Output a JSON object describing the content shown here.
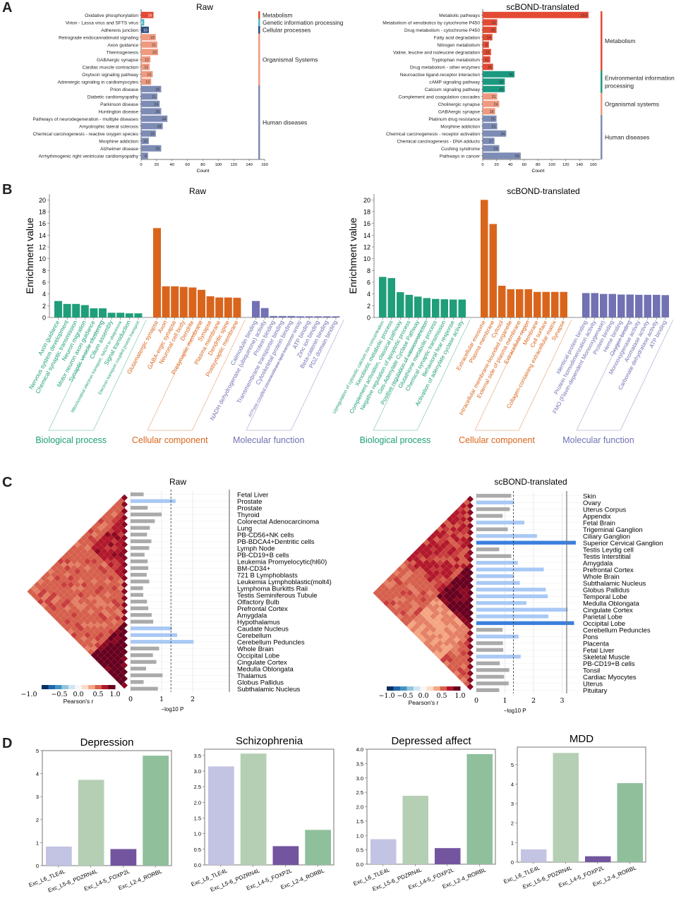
{
  "panels": {
    "a": "A",
    "b": "B",
    "c": "C",
    "d": "D"
  },
  "chart_data": [
    {
      "id": "A-raw",
      "type": "bar",
      "orientation": "horizontal",
      "title": "Raw",
      "xlabel": "Count",
      "xlim": [
        0,
        160
      ],
      "xticks": [
        0,
        20,
        40,
        60,
        80,
        100,
        120,
        140,
        160
      ],
      "categories": [
        "Oxidative phosphorylation",
        "Virion - Lassa virus and SFTS virus",
        "Adherens junction",
        "Retrograde endocannabinoid signaling",
        "Axon guidance",
        "Thermogenesis",
        "GABAergic synapse",
        "Cardiac muscle contraction",
        "Oxytocin signaling pathway",
        "Adrenergic signaling in cardiomyocytes",
        "Prion disease",
        "Diabetic cardiomyopathy",
        "Parkinson disease",
        "Huntington disease",
        "Pathways of neurodegeneration - multiple diseases",
        "Amyotrophic lateral sclerosis",
        "Chemical carcinogenesis - reactive oxygen species",
        "Morphine addiction",
        "Alzheimer disease",
        "Arrhythmogenic right ventricular cardiomyopathy"
      ],
      "values": [
        16,
        4,
        10,
        19,
        21,
        22,
        12,
        11,
        15,
        13,
        26,
        21,
        24,
        26,
        34,
        28,
        19,
        10,
        26,
        9
      ],
      "group_of": [
        0,
        1,
        2,
        3,
        3,
        3,
        3,
        3,
        3,
        3,
        4,
        4,
        4,
        4,
        4,
        4,
        4,
        4,
        4,
        4
      ],
      "groups": [
        {
          "name": "Metabolism",
          "color": "#e34a33",
          "label_color": "#ffffff"
        },
        {
          "name": "Genetic information processing",
          "color": "#4fb6c6",
          "label_color": "#ffffff"
        },
        {
          "name": "Cellular processes",
          "color": "#2b4a7e",
          "label_color": "#ffffff"
        },
        {
          "name": "Organismal Systems",
          "color": "#ef9a80",
          "label_color": "#333333"
        },
        {
          "name": "Human diseases",
          "color": "#7d8cb5",
          "label_color": "#333333"
        }
      ]
    },
    {
      "id": "A-scbond",
      "type": "bar",
      "orientation": "horizontal",
      "title": "scBOND-translated",
      "xlabel": "Count",
      "xlim": [
        0,
        170
      ],
      "xticks": [
        0,
        20,
        40,
        60,
        80,
        100,
        120,
        140,
        160
      ],
      "categories": [
        "Metabolic pathways",
        "Metabolism of xenobiotics by cytochrome P450",
        "Drug metabolism - cytochrome P450",
        "Fatty acid degradation",
        "Nitrogen metabolism",
        "Valine, leucine and isoleucine degradation",
        "Tryptophan metabolism",
        "Drug metabolism - other enzymes",
        "Neuroactive ligand-receptor interaction",
        "cAMP signaling pathway",
        "Calcium signaling pathway",
        "Complement and coagulation cascades",
        "Cholinergic synapse",
        "GABAergic synapse",
        "Platinum drug resistance",
        "Morphine addiction",
        "Chemical carcinogenesis - receptor activation",
        "Chemical carcinogenesis - DNA adducts",
        "Cushing syndrome",
        "Pathways in cancer"
      ],
      "values": [
        153,
        21,
        20,
        14,
        9,
        12,
        11,
        15,
        46,
        32,
        32,
        21,
        24,
        18,
        20,
        21,
        34,
        17,
        24,
        55
      ],
      "group_of": [
        0,
        0,
        0,
        0,
        0,
        0,
        0,
        0,
        1,
        1,
        1,
        2,
        2,
        2,
        3,
        3,
        3,
        3,
        3,
        3
      ],
      "groups": [
        {
          "name": "Metabolism",
          "color": "#e34a33",
          "label_color": "#333333"
        },
        {
          "name": "Environmental information processing",
          "color": "#1a9980",
          "label_color": "#333333"
        },
        {
          "name": "Organismal systems",
          "color": "#ef9a80",
          "label_color": "#333333"
        },
        {
          "name": "Human diseases",
          "color": "#7d8cb5",
          "label_color": "#333333"
        }
      ]
    },
    {
      "id": "B-raw",
      "type": "bar",
      "title": "Raw",
      "ylabel": "Enrichment value",
      "ylim": [
        0,
        21
      ],
      "yticks": [
        0,
        2,
        4,
        6,
        8,
        10,
        12,
        14,
        16,
        18,
        20
      ],
      "groups": [
        {
          "name": "Biological process",
          "color": "#1f9e79",
          "categories": [
            "Axon guidance",
            "Nervous system development",
            "Chemical synaptic transmission",
            "Neuron migration",
            "Motor neuron axon guidance",
            "Synaptic vesicle clustering",
            "Cilium assembly",
            "Mitochondrial electron transport, NADH to ubiquinone",
            "Signal transduction",
            "Electron transport coupled proton transport"
          ],
          "values": [
            2.8,
            2.3,
            2.3,
            2.1,
            1.55,
            1.55,
            0.8,
            0.8,
            0.7,
            0.7
          ]
        },
        {
          "name": "Cellular component",
          "color": "#d9651c",
          "categories": [
            "Glutamatergic synapse",
            "Axon",
            "GABA-ergic synapse",
            "Neuronal cell body",
            "Dendrite",
            "Presynaptic membrane",
            "Synapse",
            "Plasma membrane",
            "Dendritic spine",
            "Postsynaptic membrane"
          ],
          "values": [
            15.2,
            5.3,
            5.3,
            5.2,
            5.1,
            4.7,
            3.6,
            3.4,
            3.4,
            3.35
          ]
        },
        {
          "name": "Molecular function",
          "color": "#7271b3",
          "categories": [
            "Calmodulin binding",
            "NADH dehydrogenase (ubiquinone) activity",
            "Protein binding",
            "Transmembrane transporter binding",
            "Cytoskeletal protein binding",
            "ATPase-coupled intramembrane lipid transporter activity",
            "ATP binding",
            "Zinc ion binding",
            "Beta-catenin binding",
            "PDZ domain binding"
          ],
          "values": [
            2.8,
            1.6,
            0.25,
            0.25,
            0.25,
            0.2,
            0.2,
            0.2,
            0.2,
            0.2
          ]
        }
      ]
    },
    {
      "id": "B-scbond",
      "type": "bar",
      "title": "scBOND-translated",
      "ylabel": "Enrichment value",
      "ylim": [
        0,
        21
      ],
      "yticks": [
        0,
        2,
        4,
        6,
        8,
        10,
        12,
        14,
        16,
        18,
        20
      ],
      "groups": [
        {
          "name": "Biological process",
          "color": "#1f9e79",
          "categories": [
            "Upregulation of cytosolic calcium ion concentration",
            "Xenobiotic metabolic process",
            "Complement activation, classical pathway",
            "Negative regulation of apoptotic process",
            "Gαs-Adenylate Cyclase Pathway",
            "Positive regulation of vasoconstriction",
            "Glutathione metabolic process",
            "Chemical synaptic transmission",
            "Behavioral fear response",
            "Activation of adenylate cyclase activity"
          ],
          "values": [
            6.9,
            6.7,
            4.3,
            3.85,
            3.55,
            3.3,
            3.15,
            3.1,
            3.05,
            3.05
          ]
        },
        {
          "name": "Cellular component",
          "color": "#d9651c",
          "categories": [
            "Extracellular exosome",
            "Plasma membrane",
            "Cytosol",
            "Intracellular membrane-bounded organelle",
            "External side of plasma membrane",
            "Extracellular region",
            "Membrane",
            "Cell surface",
            "Collagen-containing extracellular matrix",
            "Synapse"
          ],
          "values": [
            20.0,
            15.9,
            5.4,
            4.8,
            4.8,
            4.8,
            4.35,
            4.35,
            4.35,
            4.35
          ]
        },
        {
          "name": "Molecular function",
          "color": "#7271b3",
          "categories": [
            "Identical protein binding",
            "Protein homodimerization activity",
            "FMO (Flavin-dependent Monooxygenase)",
            "Protein binding",
            "Heme binding",
            "Oxygen binding",
            "Monooxygenase activity",
            "Aromatase activity",
            "Carbonate dehydratase activity",
            "ATP binding"
          ],
          "values": [
            4.15,
            4.15,
            4.0,
            4.0,
            3.9,
            3.9,
            3.85,
            3.85,
            3.85,
            3.8
          ]
        }
      ]
    },
    {
      "id": "C-raw",
      "type": "heatmap",
      "title": "Raw",
      "xlabel": "−log10 P",
      "xticks": [
        0,
        1,
        2
      ],
      "xlim": [
        0,
        3
      ],
      "threshold": 1.3,
      "colorbar": {
        "label": "Pearson's r",
        "ticks": [
          "−1.0",
          "−0.5",
          "0.0",
          "0.5",
          "1.0"
        ]
      },
      "tissues": [
        "Fetal Liver",
        "Prostate",
        "Prostate",
        "Thyroid",
        "Colorectal Adenocarcinoma",
        "Lung",
        "PB-CD56+NK cells",
        "PB-BDCA4+Dentritic cells",
        "Lymph Node",
        "PB-CD19+B cells",
        "Leukemia Promyelocytic(hl60)",
        "BM-CD34+",
        "721 B Lymphoblasts",
        "Leukemia Lymphoblastic(molt4)",
        "Lymphoma Burkitts Raii",
        "Testis Seminiferous Tubule",
        "Olfactory Bulb",
        "Prefrontal Cortex",
        "Amygdala",
        "Hypothalamus",
        "Caudate Nucleus",
        "Cerebellum",
        "Cerebellum Peduncles",
        "Whole Brain",
        "Occipital Lobe",
        "Cingulate Cortex",
        "Medulla Oblongata",
        "Thalamus",
        "Globus Pallidus",
        "Subthalamic Nucleus"
      ],
      "values": [
        0.42,
        1.45,
        0.55,
        1.0,
        0.78,
        0.62,
        0.53,
        0.67,
        0.6,
        0.45,
        0.55,
        0.57,
        0.52,
        0.6,
        0.4,
        0.41,
        0.53,
        0.57,
        0.68,
        0.73,
        1.33,
        1.5,
        2.03,
        0.92,
        0.72,
        0.83,
        0.5,
        1.03,
        0.42,
        0.88
      ]
    },
    {
      "id": "C-scbond",
      "type": "heatmap",
      "title": "scBOND-translated",
      "xlabel": "−log10 P",
      "xticks": [
        0,
        1,
        2,
        3
      ],
      "xlim": [
        0,
        3.5
      ],
      "threshold": 1.3,
      "bonferroni": 3.2,
      "colorbar": {
        "label": "Pearson's r",
        "ticks": [
          "−1.0",
          "−0.5",
          "0.0",
          "0.5",
          "1.0"
        ]
      },
      "tissues": [
        "Skin",
        "Ovary",
        "Uterus Corpus",
        "Appendix",
        "Fetal Brain",
        "Trigeminal Ganglion",
        "Ciliary Ganglion",
        "Superior Cervical Ganglion",
        "Testis Leydig cell",
        "Testis Interstitial",
        "Amygdala",
        "Prefrontal Cortex",
        "Whole Brain",
        "Subthalamic Nucleus",
        "Globus Pallidus",
        "Temporal Lobe",
        "Medulla Oblongata",
        "Cingulate Cortex",
        "Parietal Lobe",
        "Occipital Lobe",
        "Cerebellum Peduncles",
        "Pons",
        "Placenta",
        "Fetal Liver",
        "Skeletal Muscle",
        "PB-CD19+B cells",
        "Tonsil",
        "Cardiac Myocytes",
        "Uterus",
        "Pituitary"
      ],
      "values": [
        1.22,
        1.32,
        1.17,
        0.92,
        1.68,
        1.1,
        2.12,
        3.48,
        0.8,
        1.22,
        1.45,
        2.36,
        1.32,
        1.52,
        2.43,
        2.5,
        1.75,
        3.2,
        2.52,
        3.42,
        0.92,
        1.48,
        0.93,
        0.94,
        1.55,
        0.82,
        1.15,
        0.97,
        1.13,
        0.8
      ]
    },
    {
      "id": "D",
      "type": "bar",
      "categories": [
        "Exc_L6_TLE4L",
        "Exc_L5-6_PDZRN4L",
        "Exc_L4-5_FOXP2L",
        "Exc_L2-4_RORBL"
      ],
      "colors": [
        "#c3c3e3",
        "#b5cfb5",
        "#73559f",
        "#8fc09b"
      ],
      "subplots": [
        {
          "title": "Depression",
          "values": [
            0.83,
            3.73,
            0.72,
            4.78
          ],
          "ylim": [
            0,
            5
          ],
          "yticks": [
            "0",
            "1",
            "2",
            "3",
            "4",
            "5"
          ],
          "ytick_values": [
            0,
            1,
            2,
            3,
            4,
            5
          ]
        },
        {
          "title": "Schizophrenia",
          "values": [
            3.15,
            3.56,
            0.6,
            1.12
          ],
          "ylim": [
            0,
            3.7
          ],
          "yticks": [
            "0.0",
            "0.5",
            "1.0",
            "1.5",
            "2.0",
            "2.5",
            "3.0",
            "3.5"
          ],
          "ytick_values": [
            0,
            0.5,
            1,
            1.5,
            2,
            2.5,
            3,
            3.5
          ]
        },
        {
          "title": "Depressed affect",
          "values": [
            0.87,
            2.38,
            0.56,
            3.83
          ],
          "ylim": [
            0,
            4.0
          ],
          "yticks": [
            "0.0",
            "0.5",
            "1.0",
            "1.5",
            "2.0",
            "2.5",
            "3.0",
            "3.5",
            "4.0"
          ],
          "ytick_values": [
            0,
            0.5,
            1,
            1.5,
            2,
            2.5,
            3,
            3.5,
            4
          ]
        },
        {
          "title": "MDD",
          "values": [
            0.65,
            5.6,
            0.3,
            4.05
          ],
          "ylim": [
            0,
            5.9
          ],
          "yticks": [
            "0",
            "1",
            "2",
            "3",
            "4",
            "5"
          ],
          "ytick_values": [
            0,
            1,
            2,
            3,
            4,
            5
          ]
        }
      ]
    }
  ]
}
